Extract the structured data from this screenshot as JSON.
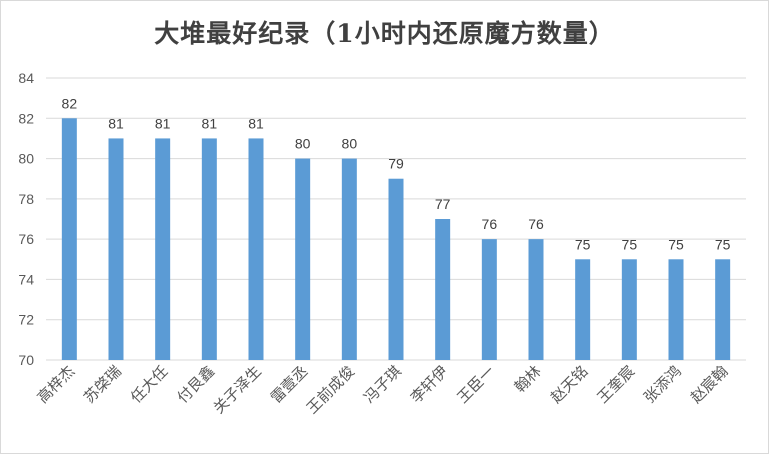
{
  "chart_data": {
    "type": "bar",
    "title": "大堆最好纪录（1小时内还原魔方数量）",
    "categories": [
      "高梓杰",
      "苏棨瑞",
      "任大任",
      "付艮鑫",
      "关子泽生",
      "雷壹丞",
      "王前成俊",
      "冯子琪",
      "李轩伊",
      "王臣一",
      "翰林",
      "赵天铭",
      "王奎宸",
      "张添鸿",
      "赵宸翰"
    ],
    "values": [
      82,
      81,
      81,
      81,
      81,
      80,
      80,
      79,
      77,
      76,
      76,
      75,
      75,
      75,
      75
    ],
    "ylim": [
      70,
      84
    ],
    "yticks": [
      "70",
      "72",
      "74",
      "76",
      "78",
      "80",
      "82",
      "84"
    ],
    "grid": true,
    "bar_color": "#5b9bd5",
    "xlabel": "",
    "ylabel": ""
  }
}
